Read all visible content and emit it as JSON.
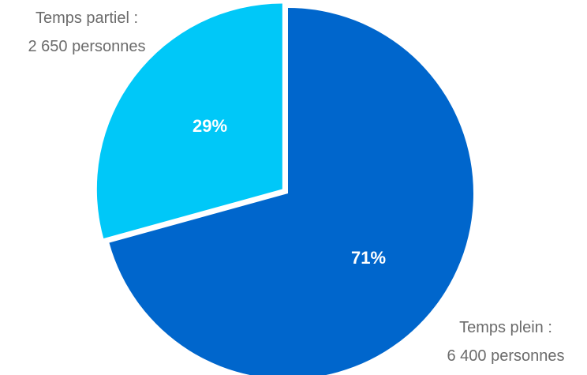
{
  "chart_data": {
    "type": "pie",
    "slices": [
      {
        "label_line1": "Temps plein :",
        "label_line2": "6 400 personnes",
        "value": 6400,
        "percent_label": "71%",
        "color": "#0066CC"
      },
      {
        "label_line1": "Temps partiel :",
        "label_line2": "2 650 personnes",
        "value": 2650,
        "percent_label": "29%",
        "color": "#00C8F8"
      }
    ],
    "exploded_slice": "Temps partiel",
    "legend": "none",
    "title": ""
  }
}
